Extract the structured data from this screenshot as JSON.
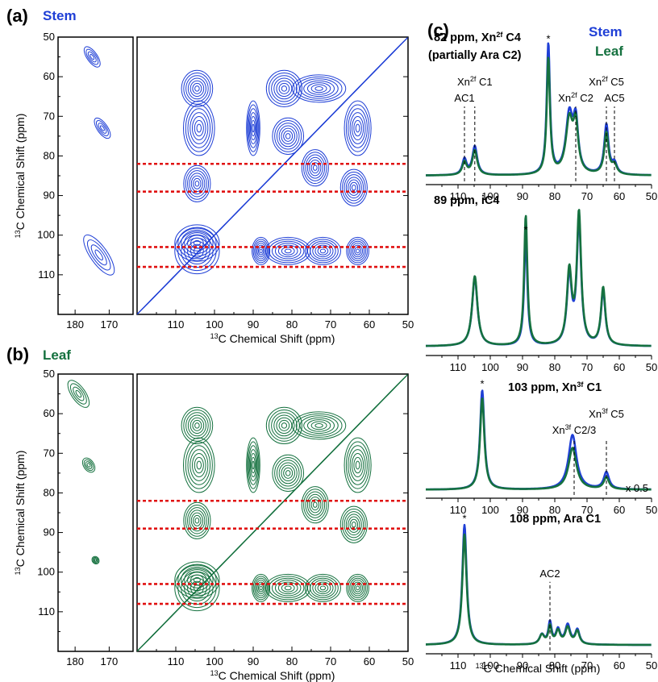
{
  "colors": {
    "stem": "#1f3fd6",
    "leaf": "#15713f",
    "slice": "#e01010"
  },
  "panels": {
    "a": {
      "label": "(a)",
      "sample": "Stem"
    },
    "b": {
      "label": "(b)",
      "sample": "Leaf"
    },
    "c": {
      "label": "(c)"
    }
  },
  "axes": {
    "shift_label_iso": "13",
    "shift_label_text": "C Chemical Shift (ppm)",
    "y_label_iso": "13",
    "y_label_text": "C Chemical Shift (ppm)"
  },
  "legend": {
    "stem": "Stem",
    "leaf": "Leaf"
  },
  "chart_data": [
    {
      "type": "heatmap",
      "id": "a",
      "sample": "Stem",
      "x_left_ticks": [
        180,
        170
      ],
      "x_left_range": [
        185,
        163
      ],
      "x_main_ticks": [
        110,
        100,
        90,
        80,
        70,
        60,
        50
      ],
      "x_main_range": [
        120,
        50
      ],
      "y_ticks": [
        50,
        60,
        70,
        80,
        90,
        100,
        110
      ],
      "y_range": [
        50,
        120
      ],
      "slice_lines_ppm": [
        82,
        89,
        103,
        108
      ],
      "cross_peaks": [
        [
          104.5,
          63,
          3.5,
          4,
          0.7
        ],
        [
          104,
          73,
          3.5,
          6,
          0.9
        ],
        [
          104.5,
          87,
          3,
          4,
          0.7
        ],
        [
          90,
          73,
          1.5,
          6,
          0.5
        ],
        [
          82,
          63,
          4,
          4,
          0.7
        ],
        [
          81,
          75,
          3.5,
          4,
          0.7
        ],
        [
          74,
          83,
          3,
          4,
          0.7
        ],
        [
          64,
          88,
          3,
          4,
          0.7
        ],
        [
          63,
          73,
          3,
          6,
          0.7
        ],
        [
          73,
          63,
          6,
          3,
          0.7
        ],
        [
          104.5,
          102,
          5,
          4,
          0.9
        ],
        [
          104.5,
          104,
          5,
          5,
          0.9
        ],
        [
          81,
          104,
          5,
          3,
          0.8
        ],
        [
          72,
          104,
          4,
          3,
          0.8
        ],
        [
          63,
          104,
          2.5,
          3,
          0.7
        ],
        [
          88,
          104,
          2,
          3,
          0.6
        ]
      ],
      "carbonyl_peaks": [
        [
          175,
          55,
          1.5,
          3,
          0.6
        ],
        [
          172,
          73,
          1.5,
          3,
          0.6
        ],
        [
          173,
          105,
          2.5,
          6,
          0.8
        ]
      ]
    },
    {
      "type": "heatmap",
      "id": "b",
      "sample": "Leaf",
      "x_left_ticks": [
        180,
        170
      ],
      "x_left_range": [
        185,
        163
      ],
      "x_main_ticks": [
        110,
        100,
        90,
        80,
        70,
        60,
        50
      ],
      "x_main_range": [
        120,
        50
      ],
      "y_ticks": [
        50,
        60,
        70,
        80,
        90,
        100,
        110
      ],
      "y_range": [
        50,
        120
      ],
      "slice_lines_ppm": [
        82,
        89,
        103,
        108
      ],
      "cross_peaks": [
        [
          104.5,
          63,
          3.5,
          4,
          0.7
        ],
        [
          104,
          73,
          3.5,
          6,
          0.9
        ],
        [
          104.5,
          87,
          3,
          4,
          0.7
        ],
        [
          90,
          73,
          1.5,
          6,
          0.5
        ],
        [
          82,
          63,
          4,
          4,
          0.7
        ],
        [
          81,
          75,
          3.5,
          4,
          0.7
        ],
        [
          74,
          83,
          3,
          4,
          0.7
        ],
        [
          64,
          88,
          3,
          4,
          0.7
        ],
        [
          63,
          73,
          3,
          6,
          0.7
        ],
        [
          73,
          63,
          6,
          3,
          0.7
        ],
        [
          104.5,
          102,
          5,
          4,
          0.9
        ],
        [
          104.5,
          104,
          5,
          5,
          0.9
        ],
        [
          81,
          104,
          5,
          3,
          0.8
        ],
        [
          72,
          104,
          4,
          3,
          0.8
        ],
        [
          63,
          104,
          2.5,
          3,
          0.7
        ],
        [
          88,
          104,
          2,
          3,
          0.6
        ]
      ],
      "carbonyl_peaks": [
        [
          179,
          55,
          2,
          4,
          0.7
        ],
        [
          176,
          73,
          1.5,
          2,
          0.5
        ],
        [
          174,
          97,
          1,
          1,
          0.4
        ]
      ]
    },
    {
      "type": "line",
      "id": "c1",
      "title": "82 ppm, Xn",
      "title_sup": "2f",
      "title_rest": " C4",
      "subtitle": "(partially Ara C2)",
      "x_range": [
        120,
        50
      ],
      "x_ticks": [
        110,
        100,
        90,
        80,
        70,
        60,
        50
      ],
      "peaks_stem": [
        [
          108,
          0.12,
          0.8
        ],
        [
          104.8,
          0.22,
          0.9
        ],
        [
          82,
          1.0,
          0.6
        ],
        [
          75.5,
          0.45,
          1.3
        ],
        [
          73.5,
          0.37,
          0.9
        ],
        [
          64,
          0.38,
          0.8
        ],
        [
          61.5,
          0.08,
          0.9
        ]
      ],
      "peaks_leaf": [
        [
          108,
          0.1,
          0.8
        ],
        [
          104.8,
          0.19,
          0.9
        ],
        [
          82,
          0.89,
          0.6
        ],
        [
          75.5,
          0.41,
          1.3
        ],
        [
          73.5,
          0.35,
          0.9
        ],
        [
          64,
          0.32,
          0.8
        ],
        [
          61.5,
          0.07,
          0.9
        ]
      ],
      "star_ppm": 82,
      "annotations": [
        {
          "text": "AC1",
          "ppm": 108
        },
        {
          "text": "Xn",
          "sup": "2f",
          "rest": " C1",
          "ppm": 104.8
        },
        {
          "text": "Xn",
          "sup": "2f",
          "rest": " C2",
          "ppm": 73.5
        },
        {
          "text": "Xn",
          "sup": "2f",
          "rest": " C5",
          "ppm": 64
        },
        {
          "text": "AC5",
          "ppm": 61.5
        }
      ]
    },
    {
      "type": "line",
      "id": "c2",
      "title": "89 ppm, iC4",
      "x_range": [
        120,
        50
      ],
      "x_ticks": [
        110,
        100,
        90,
        80,
        70,
        60,
        50
      ],
      "peaks_stem": [
        [
          104.8,
          0.5,
          1.0
        ],
        [
          89,
          0.8,
          0.6
        ],
        [
          75.5,
          0.5,
          0.9
        ],
        [
          72.5,
          0.9,
          0.8
        ],
        [
          65,
          0.4,
          0.8
        ]
      ],
      "peaks_leaf": [
        [
          104.8,
          0.51,
          1.0
        ],
        [
          89,
          0.95,
          0.6
        ],
        [
          75.5,
          0.53,
          0.9
        ],
        [
          72.5,
          0.95,
          0.8
        ],
        [
          65,
          0.42,
          0.8
        ]
      ],
      "star_ppm": 89,
      "annotations": []
    },
    {
      "type": "line",
      "id": "c3",
      "title": "103 ppm, Xn",
      "title_sup": "3f",
      "title_rest": " C1",
      "x_range": [
        120,
        50
      ],
      "x_ticks": [
        110,
        100,
        90,
        80,
        70,
        60,
        50
      ],
      "peaks_stem": [
        [
          102.5,
          1.0,
          0.8
        ],
        [
          74.5,
          0.55,
          1.5
        ],
        [
          64,
          0.17,
          1.0
        ]
      ],
      "peaks_leaf": [
        [
          102.5,
          0.92,
          0.8
        ],
        [
          74.5,
          0.42,
          1.5
        ],
        [
          64,
          0.12,
          1.0
        ]
      ],
      "star_ppm": 102.5,
      "scale_note": "x 0.5",
      "annotations": [
        {
          "text": "Xn",
          "sup": "3f",
          "rest": " C2/3",
          "ppm": 74
        },
        {
          "text": "Xn",
          "sup": "3f",
          "rest": " C5",
          "ppm": 64
        }
      ]
    },
    {
      "type": "line",
      "id": "c4",
      "title": "108 ppm, Ara C1",
      "x_range": [
        120,
        50
      ],
      "x_ticks": [
        110,
        100,
        90,
        80,
        70,
        60,
        50
      ],
      "peaks_stem": [
        [
          108,
          1.0,
          0.8
        ],
        [
          84,
          0.08,
          0.9
        ],
        [
          81.5,
          0.18,
          0.6
        ],
        [
          79,
          0.12,
          0.8
        ],
        [
          76,
          0.16,
          0.9
        ],
        [
          73,
          0.12,
          0.8
        ]
      ],
      "peaks_leaf": [
        [
          108,
          0.92,
          0.8
        ],
        [
          84,
          0.08,
          0.9
        ],
        [
          81.5,
          0.15,
          0.6
        ],
        [
          79,
          0.11,
          0.8
        ],
        [
          76,
          0.14,
          0.9
        ],
        [
          73,
          0.11,
          0.8
        ]
      ],
      "star_ppm": 108,
      "annotations": [
        {
          "text": "AC2",
          "ppm": 81.5
        }
      ]
    }
  ]
}
